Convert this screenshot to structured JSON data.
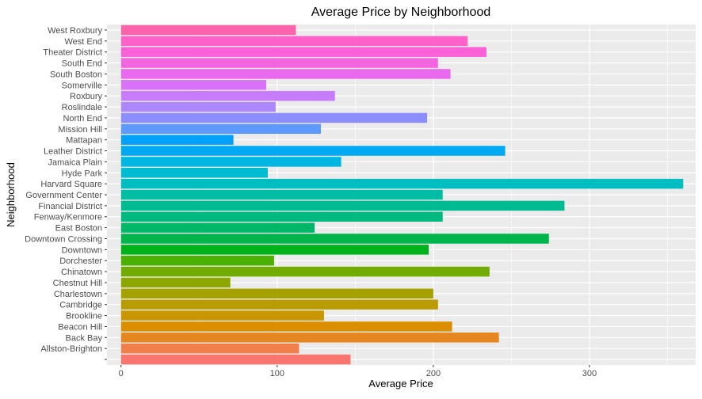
{
  "chart_data": {
    "type": "bar",
    "orientation": "horizontal",
    "title": "Average Price by Neighborhood",
    "xlabel": "Average Price",
    "ylabel": "Neighborhood",
    "xlim": [
      -9,
      368
    ],
    "x_ticks": [
      0,
      100,
      200,
      300
    ],
    "x_tick_labels": [
      "0",
      "100",
      "200",
      "300"
    ],
    "grid": true,
    "legend": "none",
    "background_color": "#EBEBEB",
    "grid_color": "#FFFFFF",
    "categories": [
      "",
      "Allston-Brighton",
      "Back Bay",
      "Beacon Hill",
      "Brookline",
      "Cambridge",
      "Charlestown",
      "Chestnut Hill",
      "Chinatown",
      "Dorchester",
      "Downtown",
      "Downtown Crossing",
      "East Boston",
      "Fenway/Kenmore",
      "Financial District",
      "Government Center",
      "Harvard Square",
      "Hyde Park",
      "Jamaica Plain",
      "Leather District",
      "Mattapan",
      "Mission Hill",
      "North End",
      "Roslindale",
      "Roxbury",
      "Somerville",
      "South Boston",
      "South End",
      "Theater District",
      "West End",
      "West Roxbury"
    ],
    "values": [
      147,
      114,
      242,
      212,
      130,
      203,
      200,
      70,
      236,
      98,
      197,
      274,
      124,
      206,
      284,
      206,
      360,
      94,
      141,
      246,
      72,
      128,
      196,
      99,
      137,
      93,
      211,
      203,
      234,
      222,
      112
    ],
    "colors": [
      "#F8766D",
      "#F07F4C",
      "#E6861F",
      "#D98F00",
      "#CA9600",
      "#B99C00",
      "#A5A200",
      "#8EA700",
      "#72AB00",
      "#4CB000",
      "#00B31A",
      "#00B54B",
      "#00B767",
      "#00B97E",
      "#00BB92",
      "#00BDA4",
      "#00BDC2",
      "#00BCD2",
      "#00B6E2",
      "#00A9F2",
      "#00A0FC",
      "#5E99FE",
      "#8C8EFF",
      "#AC87FF",
      "#C77CFF",
      "#DA72F8",
      "#E96AEE",
      "#F365E0",
      "#FB61D7",
      "#FE61C8",
      "#FC63AD"
    ]
  }
}
